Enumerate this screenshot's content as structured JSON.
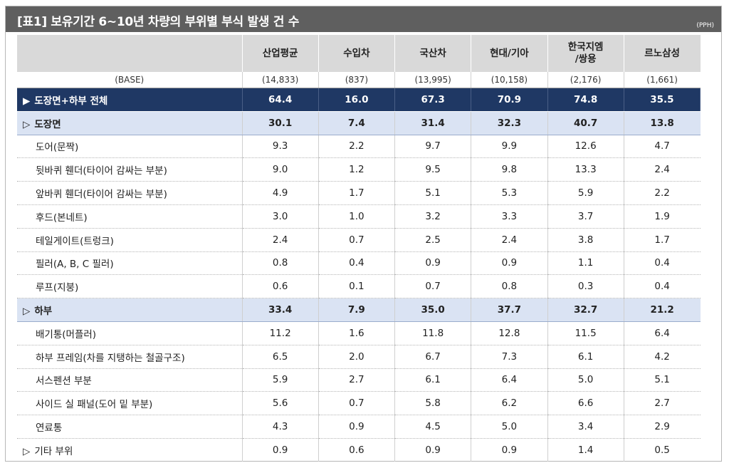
{
  "title": "[표1] 보유기간 6~10년 차량의 부위별 부식 발생 건 수",
  "unit": "(PPH)",
  "columns": [
    "산업평균",
    "수입차",
    "국산차",
    "현대/기아",
    "한국지엠\n/쌍용",
    "르노삼성"
  ],
  "base": {
    "label": "(BASE)",
    "values": [
      "(14,833)",
      "(837)",
      "(13,995)",
      "(10,158)",
      "(2,176)",
      "(1,661)"
    ]
  },
  "total": {
    "mark": "▶",
    "label": "도장면+하부 전체",
    "values": [
      "64.4",
      "16.0",
      "67.3",
      "70.9",
      "74.8",
      "35.5"
    ]
  },
  "sections": [
    {
      "mark": "▷",
      "label": "도장면",
      "values": [
        "30.1",
        "7.4",
        "31.4",
        "32.3",
        "40.7",
        "13.8"
      ],
      "rows": [
        {
          "label": "도어(문짝)",
          "values": [
            "9.3",
            "2.2",
            "9.7",
            "9.9",
            "12.6",
            "4.7"
          ]
        },
        {
          "label": "뒷바퀴 휀더(타이어 감싸는 부분)",
          "values": [
            "9.0",
            "1.2",
            "9.5",
            "9.8",
            "13.3",
            "2.4"
          ]
        },
        {
          "label": "앞바퀴 휀더(타이어 감싸는 부분)",
          "values": [
            "4.9",
            "1.7",
            "5.1",
            "5.3",
            "5.9",
            "2.2"
          ]
        },
        {
          "label": "후드(본네트)",
          "values": [
            "3.0",
            "1.0",
            "3.2",
            "3.3",
            "3.7",
            "1.9"
          ]
        },
        {
          "label": "테일게이트(트렁크)",
          "values": [
            "2.4",
            "0.7",
            "2.5",
            "2.4",
            "3.8",
            "1.7"
          ]
        },
        {
          "label": "필러(A, B, C 필러)",
          "values": [
            "0.8",
            "0.4",
            "0.9",
            "0.9",
            "1.1",
            "0.4"
          ]
        },
        {
          "label": "루프(지붕)",
          "values": [
            "0.6",
            "0.1",
            "0.7",
            "0.8",
            "0.3",
            "0.4"
          ]
        }
      ]
    },
    {
      "mark": "▷",
      "label": "하부",
      "values": [
        "33.4",
        "7.9",
        "35.0",
        "37.7",
        "32.7",
        "21.2"
      ],
      "rows": [
        {
          "label": "배기통(머플러)",
          "values": [
            "11.2",
            "1.6",
            "11.8",
            "12.8",
            "11.5",
            "6.4"
          ]
        },
        {
          "label": "하부 프레임(차를 지탱하는 철골구조)",
          "values": [
            "6.5",
            "2.0",
            "6.7",
            "7.3",
            "6.1",
            "4.2"
          ]
        },
        {
          "label": "서스펜션 부분",
          "values": [
            "5.9",
            "2.7",
            "6.1",
            "6.4",
            "5.0",
            "5.1"
          ]
        },
        {
          "label": "사이드 실 패널(도어 밑 부분)",
          "values": [
            "5.6",
            "0.7",
            "5.8",
            "6.2",
            "6.6",
            "2.7"
          ]
        },
        {
          "label": "연료통",
          "values": [
            "4.3",
            "0.9",
            "4.5",
            "5.0",
            "3.4",
            "2.9"
          ]
        }
      ]
    }
  ],
  "other": {
    "mark": "▷",
    "label": "기타 부위",
    "values": [
      "0.9",
      "0.6",
      "0.9",
      "0.9",
      "1.4",
      "0.5"
    ]
  }
}
